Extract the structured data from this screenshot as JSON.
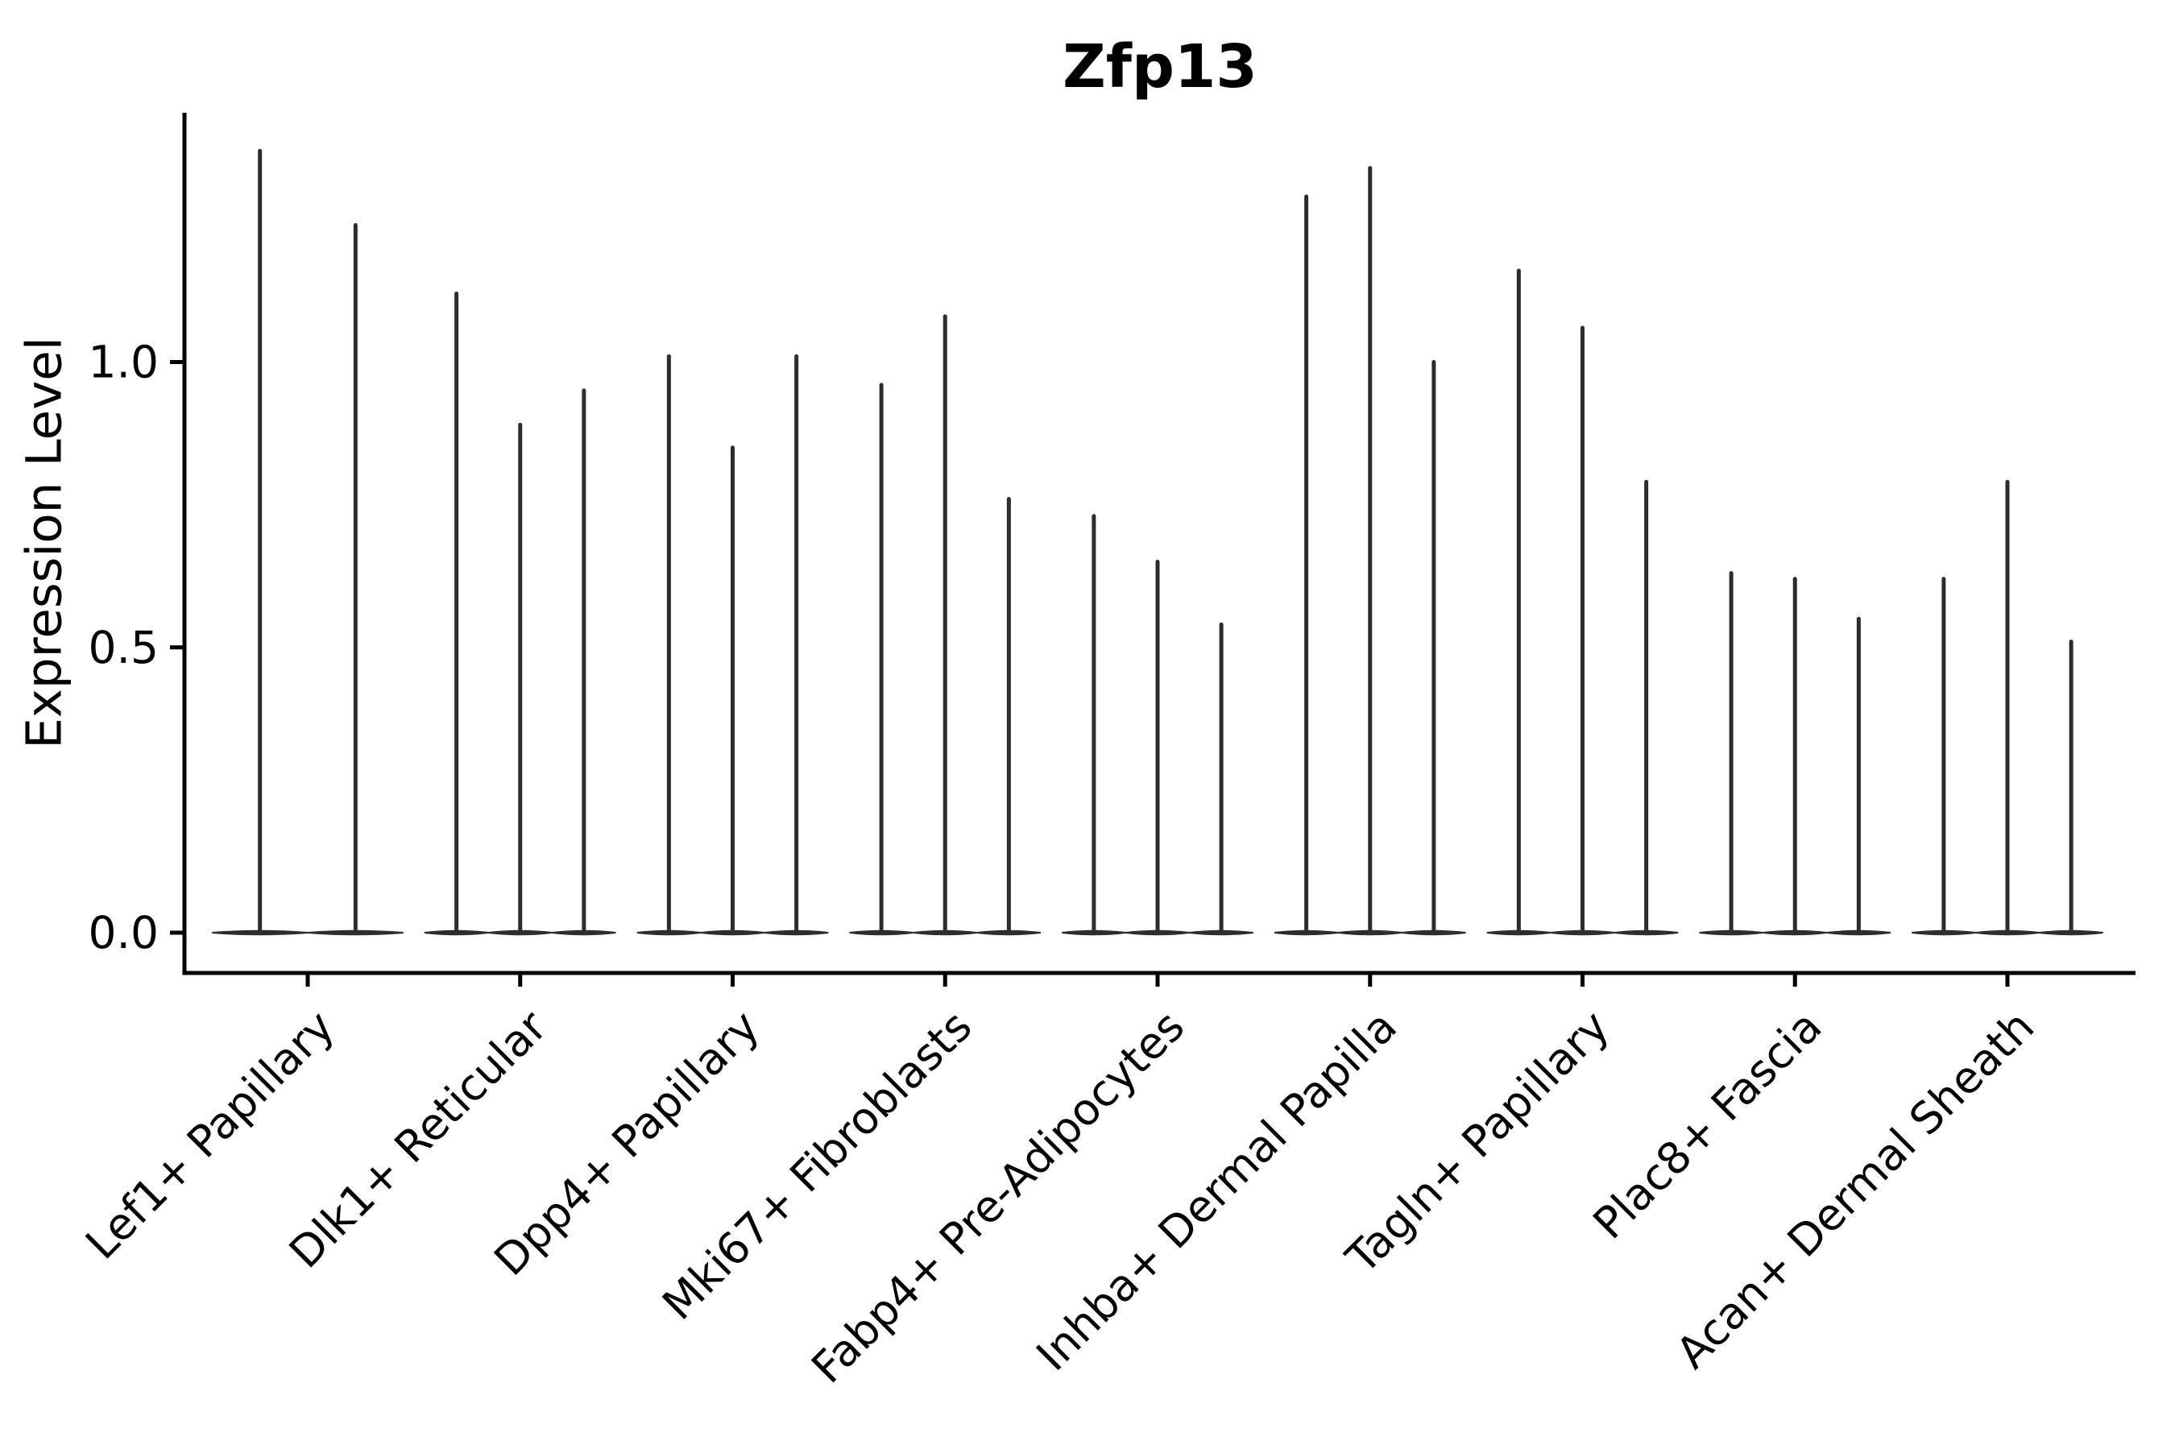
{
  "title": "Zfp13",
  "chart_data": {
    "type": "violin",
    "title": "Zfp13",
    "xlabel": "",
    "ylabel": "Expression Level",
    "legend": "none",
    "grid": false,
    "background_color": "#ffffff",
    "violin_color": "#2d2d2d",
    "axis_color": "#000000",
    "ylim": [
      -0.07,
      1.44
    ],
    "y_ticks": [
      {
        "label": "0.0",
        "value": 0.0
      },
      {
        "label": "0.5",
        "value": 0.5
      },
      {
        "label": "1.0",
        "value": 1.0
      }
    ],
    "baseline_value": 0,
    "categories": [
      "Lef1+ Papillary",
      "Dlk1+ Reticular",
      "Dpp4+ Papillary",
      "Mki67+ Fibroblasts",
      "Fabp4+ Pre-Adipocytes",
      "Inhba+ Dermal Papilla",
      "Tagln+ Papillary",
      "Plac8+ Fascia",
      "Acan+ Dermal Sheath"
    ],
    "series": [
      {
        "category": "Lef1+ Papillary",
        "violin_max_values": [
          1.37,
          1.24
        ]
      },
      {
        "category": "Dlk1+ Reticular",
        "violin_max_values": [
          1.12,
          0.89,
          0.95
        ]
      },
      {
        "category": "Dpp4+ Papillary",
        "violin_max_values": [
          1.01,
          0.85,
          1.01
        ]
      },
      {
        "category": "Mki67+ Fibroblasts",
        "violin_max_values": [
          0.96,
          1.08,
          0.76
        ]
      },
      {
        "category": "Fabp4+ Pre-Adipocytes",
        "violin_max_values": [
          0.73,
          0.65,
          0.54
        ]
      },
      {
        "category": "Inhba+ Dermal Papilla",
        "violin_max_values": [
          1.29,
          1.34,
          1.0
        ]
      },
      {
        "category": "Tagln+ Papillary",
        "violin_max_values": [
          1.16,
          1.06,
          0.79
        ]
      },
      {
        "category": "Plac8+ Fascia",
        "violin_max_values": [
          0.63,
          0.62,
          0.55
        ]
      },
      {
        "category": "Acan+ Dermal Sheath",
        "violin_max_values": [
          0.62,
          0.79,
          0.51
        ]
      }
    ]
  }
}
